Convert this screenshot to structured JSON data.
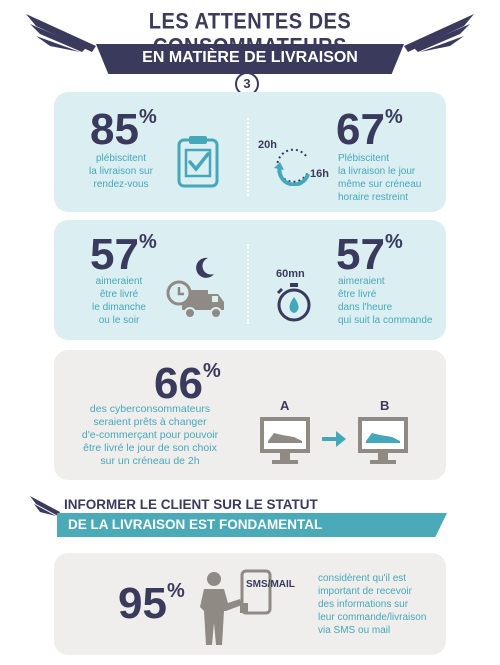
{
  "header": {
    "title": "LES ATTENTES DES CONSOMMATEURS",
    "subtitle": "EN MATIÈRE DE LIVRAISON",
    "number": "3"
  },
  "stats": {
    "s1": {
      "value": "85",
      "unit": "%",
      "lines": [
        "plébiscitent",
        "la livraison sur",
        "rendez-vous"
      ],
      "icon": "clipboard-check-icon"
    },
    "s2": {
      "value": "67",
      "unit": "%",
      "lines": [
        "Plébiscitent",
        "la livraison le jour",
        "même sur créneau",
        "horaire  restreint"
      ],
      "clock_from": "20h",
      "clock_to": "16h"
    },
    "s3": {
      "value": "57",
      "unit": "%",
      "lines": [
        "aimeraient",
        "être livré",
        "le dimanche",
        "ou le soir"
      ]
    },
    "s4": {
      "value": "57",
      "unit": "%",
      "lines": [
        "aimeraient",
        "être livré",
        "dans l'heure",
        "qui suit la commande"
      ],
      "timer_label": "60mn"
    },
    "s5": {
      "value": "66",
      "unit": "%",
      "lines": [
        "des cyberconsommateurs",
        "seraient prêts à changer",
        "d'e-commerçant pour pouvoir",
        "être livré le jour de son choix",
        "sur un créneau de 2h"
      ],
      "label_a": "A",
      "label_b": "B"
    }
  },
  "section": {
    "title": "INFORMER LE CLIENT SUR LE STATUT",
    "bar": "DE LA LIVRAISON EST FONDAMENTAL"
  },
  "stat_sms": {
    "value": "95",
    "unit": "%",
    "phone_label": "SMS/MAIL",
    "lines": [
      "considèrent qu'il est",
      "important de recevoir",
      "des informations sur",
      "leur commande/livraison",
      "via SMS ou mail"
    ]
  },
  "colors": {
    "navy": "#3a3a5c",
    "teal": "#45a8ba",
    "panel_blue": "#dbeef2",
    "panel_gray": "#efeeec",
    "icon_gray": "#8f8b84"
  }
}
